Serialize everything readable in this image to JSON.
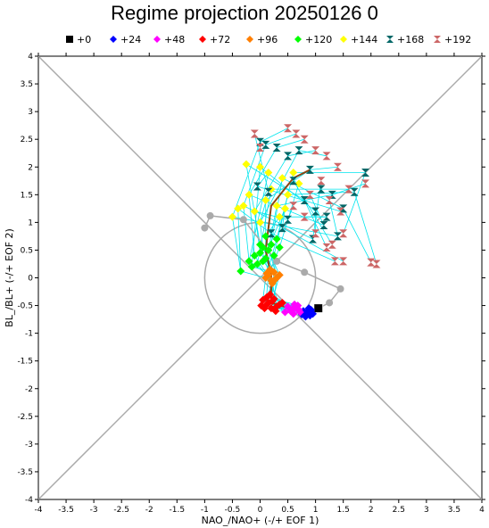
{
  "chart_data": {
    "type": "scatter",
    "title": "Regime projection 20250126 0",
    "xlabel": "NAO_/NAO+ (-/+ EOF 1)",
    "ylabel": "BL_/BL+ (-/+ EOF 2)",
    "xlim": [
      -4,
      4
    ],
    "ylim": [
      -4,
      4
    ],
    "xticks": [
      "-4",
      "-3.5",
      "-3",
      "-2.5",
      "-2",
      "-1.5",
      "-1",
      "-0.5",
      "0",
      "0.5",
      "1",
      "1.5",
      "2",
      "2.5",
      "3",
      "3.5",
      "4"
    ],
    "yticks": [
      "-4",
      "-3.5",
      "-3",
      "-2.5",
      "-2",
      "-1.5",
      "-1",
      "-0.5",
      "0",
      "0.5",
      "1",
      "1.5",
      "2",
      "2.5",
      "3",
      "3.5",
      "4"
    ],
    "reference_circle_radius": 1,
    "legend_position": "top",
    "series": [
      {
        "name": "+0",
        "color": "#000000",
        "marker": "square",
        "points": [
          [
            1.05,
            -0.55
          ]
        ]
      },
      {
        "name": "+24",
        "color": "#0000ff",
        "marker": "diamond",
        "points": [
          [
            0.85,
            -0.62
          ],
          [
            0.9,
            -0.68
          ],
          [
            0.78,
            -0.6
          ],
          [
            0.92,
            -0.58
          ],
          [
            0.82,
            -0.7
          ],
          [
            0.95,
            -0.65
          ],
          [
            0.75,
            -0.66
          ],
          [
            0.88,
            -0.55
          ],
          [
            0.8,
            -0.63
          ]
        ]
      },
      {
        "name": "+48",
        "color": "#ff00ff",
        "marker": "diamond",
        "points": [
          [
            0.55,
            -0.6
          ],
          [
            0.65,
            -0.55
          ],
          [
            0.6,
            -0.65
          ],
          [
            0.7,
            -0.58
          ],
          [
            0.5,
            -0.52
          ],
          [
            0.45,
            -0.62
          ],
          [
            0.62,
            -0.48
          ],
          [
            0.72,
            -0.62
          ],
          [
            0.68,
            -0.5
          ],
          [
            0.58,
            -0.57
          ]
        ]
      },
      {
        "name": "+72",
        "color": "#ff0000",
        "marker": "diamond",
        "points": [
          [
            0.05,
            -0.4
          ],
          [
            0.1,
            -0.5
          ],
          [
            0.15,
            -0.45
          ],
          [
            0.2,
            -0.55
          ],
          [
            0.25,
            -0.38
          ],
          [
            0.3,
            -0.52
          ],
          [
            0.12,
            -0.35
          ],
          [
            0.22,
            -0.42
          ],
          [
            0.35,
            -0.48
          ],
          [
            0.08,
            -0.55
          ],
          [
            0.28,
            -0.6
          ],
          [
            0.18,
            -0.3
          ],
          [
            0.4,
            -0.45
          ],
          [
            0.02,
            -0.5
          ]
        ]
      },
      {
        "name": "+96",
        "color": "#ff7f00",
        "marker": "diamond",
        "points": [
          [
            0.1,
            0.0
          ],
          [
            0.15,
            0.05
          ],
          [
            0.2,
            -0.05
          ],
          [
            0.25,
            0.1
          ],
          [
            0.3,
            0.0
          ],
          [
            0.18,
            0.15
          ],
          [
            0.22,
            -0.1
          ],
          [
            0.35,
            0.05
          ],
          [
            0.12,
            0.08
          ],
          [
            0.28,
            -0.02
          ]
        ]
      },
      {
        "name": "+120",
        "color": "#00ff00",
        "marker": "diamond",
        "points": [
          [
            -0.35,
            0.12
          ],
          [
            -0.2,
            0.3
          ],
          [
            -0.1,
            0.4
          ],
          [
            0.0,
            0.45
          ],
          [
            0.05,
            0.55
          ],
          [
            0.1,
            0.35
          ],
          [
            -0.05,
            0.25
          ],
          [
            0.15,
            0.5
          ],
          [
            0.2,
            0.6
          ],
          [
            0.25,
            0.4
          ],
          [
            0.3,
            0.7
          ],
          [
            0.35,
            0.55
          ],
          [
            0.0,
            0.6
          ],
          [
            -0.15,
            0.2
          ],
          [
            0.1,
            0.75
          ],
          [
            0.05,
            0.3
          ]
        ]
      },
      {
        "name": "+144",
        "color": "#ffff00",
        "marker": "diamond",
        "points": [
          [
            -0.5,
            1.1
          ],
          [
            -0.3,
            1.3
          ],
          [
            -0.2,
            1.5
          ],
          [
            -0.1,
            1.2
          ],
          [
            0.0,
            1.0
          ],
          [
            0.1,
            1.4
          ],
          [
            0.2,
            1.6
          ],
          [
            0.3,
            1.3
          ],
          [
            0.4,
            1.8
          ],
          [
            0.5,
            1.5
          ],
          [
            0.6,
            1.9
          ],
          [
            0.7,
            1.7
          ],
          [
            -0.25,
            2.05
          ],
          [
            0.0,
            2.0
          ],
          [
            0.35,
            1.1
          ],
          [
            0.45,
            1.25
          ],
          [
            -0.4,
            1.25
          ],
          [
            0.15,
            1.9
          ]
        ]
      },
      {
        "name": "+168",
        "color": "#006666",
        "marker": "triangle",
        "points": [
          [
            0.0,
            2.45
          ],
          [
            0.1,
            2.4
          ],
          [
            0.3,
            2.35
          ],
          [
            0.5,
            2.2
          ],
          [
            0.7,
            2.3
          ],
          [
            0.9,
            1.95
          ],
          [
            1.1,
            1.6
          ],
          [
            1.3,
            1.5
          ],
          [
            1.5,
            1.25
          ],
          [
            1.7,
            1.55
          ],
          [
            1.9,
            1.9
          ],
          [
            0.6,
            1.75
          ],
          [
            0.8,
            1.4
          ],
          [
            1.0,
            1.2
          ],
          [
            1.2,
            1.1
          ],
          [
            0.4,
            0.9
          ],
          [
            0.2,
            0.8
          ],
          [
            -0.05,
            1.65
          ],
          [
            1.4,
            0.75
          ],
          [
            0.95,
            0.7
          ],
          [
            1.15,
            0.95
          ],
          [
            0.5,
            1.05
          ],
          [
            0.15,
            1.55
          ]
        ]
      },
      {
        "name": "+192",
        "color": "#cc6666",
        "marker": "triangle",
        "points": [
          [
            0.5,
            2.7
          ],
          [
            0.65,
            2.6
          ],
          [
            0.8,
            2.5
          ],
          [
            1.0,
            2.3
          ],
          [
            1.2,
            2.2
          ],
          [
            1.4,
            2.0
          ],
          [
            1.6,
            1.6
          ],
          [
            1.9,
            1.7
          ],
          [
            2.0,
            0.28
          ],
          [
            2.1,
            0.25
          ],
          [
            1.5,
            0.8
          ],
          [
            1.3,
            0.6
          ],
          [
            1.2,
            0.55
          ],
          [
            1.0,
            0.8
          ],
          [
            0.8,
            1.1
          ],
          [
            1.5,
            0.3
          ],
          [
            1.35,
            0.3
          ],
          [
            1.45,
            1.2
          ],
          [
            1.25,
            1.4
          ],
          [
            1.1,
            1.75
          ],
          [
            0.9,
            1.5
          ],
          [
            0.6,
            1.3
          ],
          [
            -0.1,
            2.6
          ],
          [
            0.0,
            2.35
          ]
        ]
      }
    ],
    "ensemble_mean_track": {
      "color": "#8b4513",
      "points": [
        [
          1.05,
          -0.55
        ],
        [
          0.85,
          -0.62
        ],
        [
          0.6,
          -0.57
        ],
        [
          0.2,
          -0.45
        ],
        [
          0.2,
          0.05
        ],
        [
          0.1,
          0.5
        ],
        [
          0.2,
          1.3
        ],
        [
          0.6,
          1.8
        ],
        [
          0.9,
          1.95
        ]
      ]
    },
    "control_track": {
      "color": "#aaaaaa",
      "points": [
        [
          -1.0,
          0.9
        ],
        [
          -0.9,
          1.12
        ],
        [
          -0.3,
          1.05
        ],
        [
          0.3,
          0.3
        ],
        [
          0.8,
          0.1
        ],
        [
          1.45,
          -0.2
        ],
        [
          1.25,
          -0.45
        ],
        [
          1.05,
          -0.55
        ]
      ]
    }
  }
}
